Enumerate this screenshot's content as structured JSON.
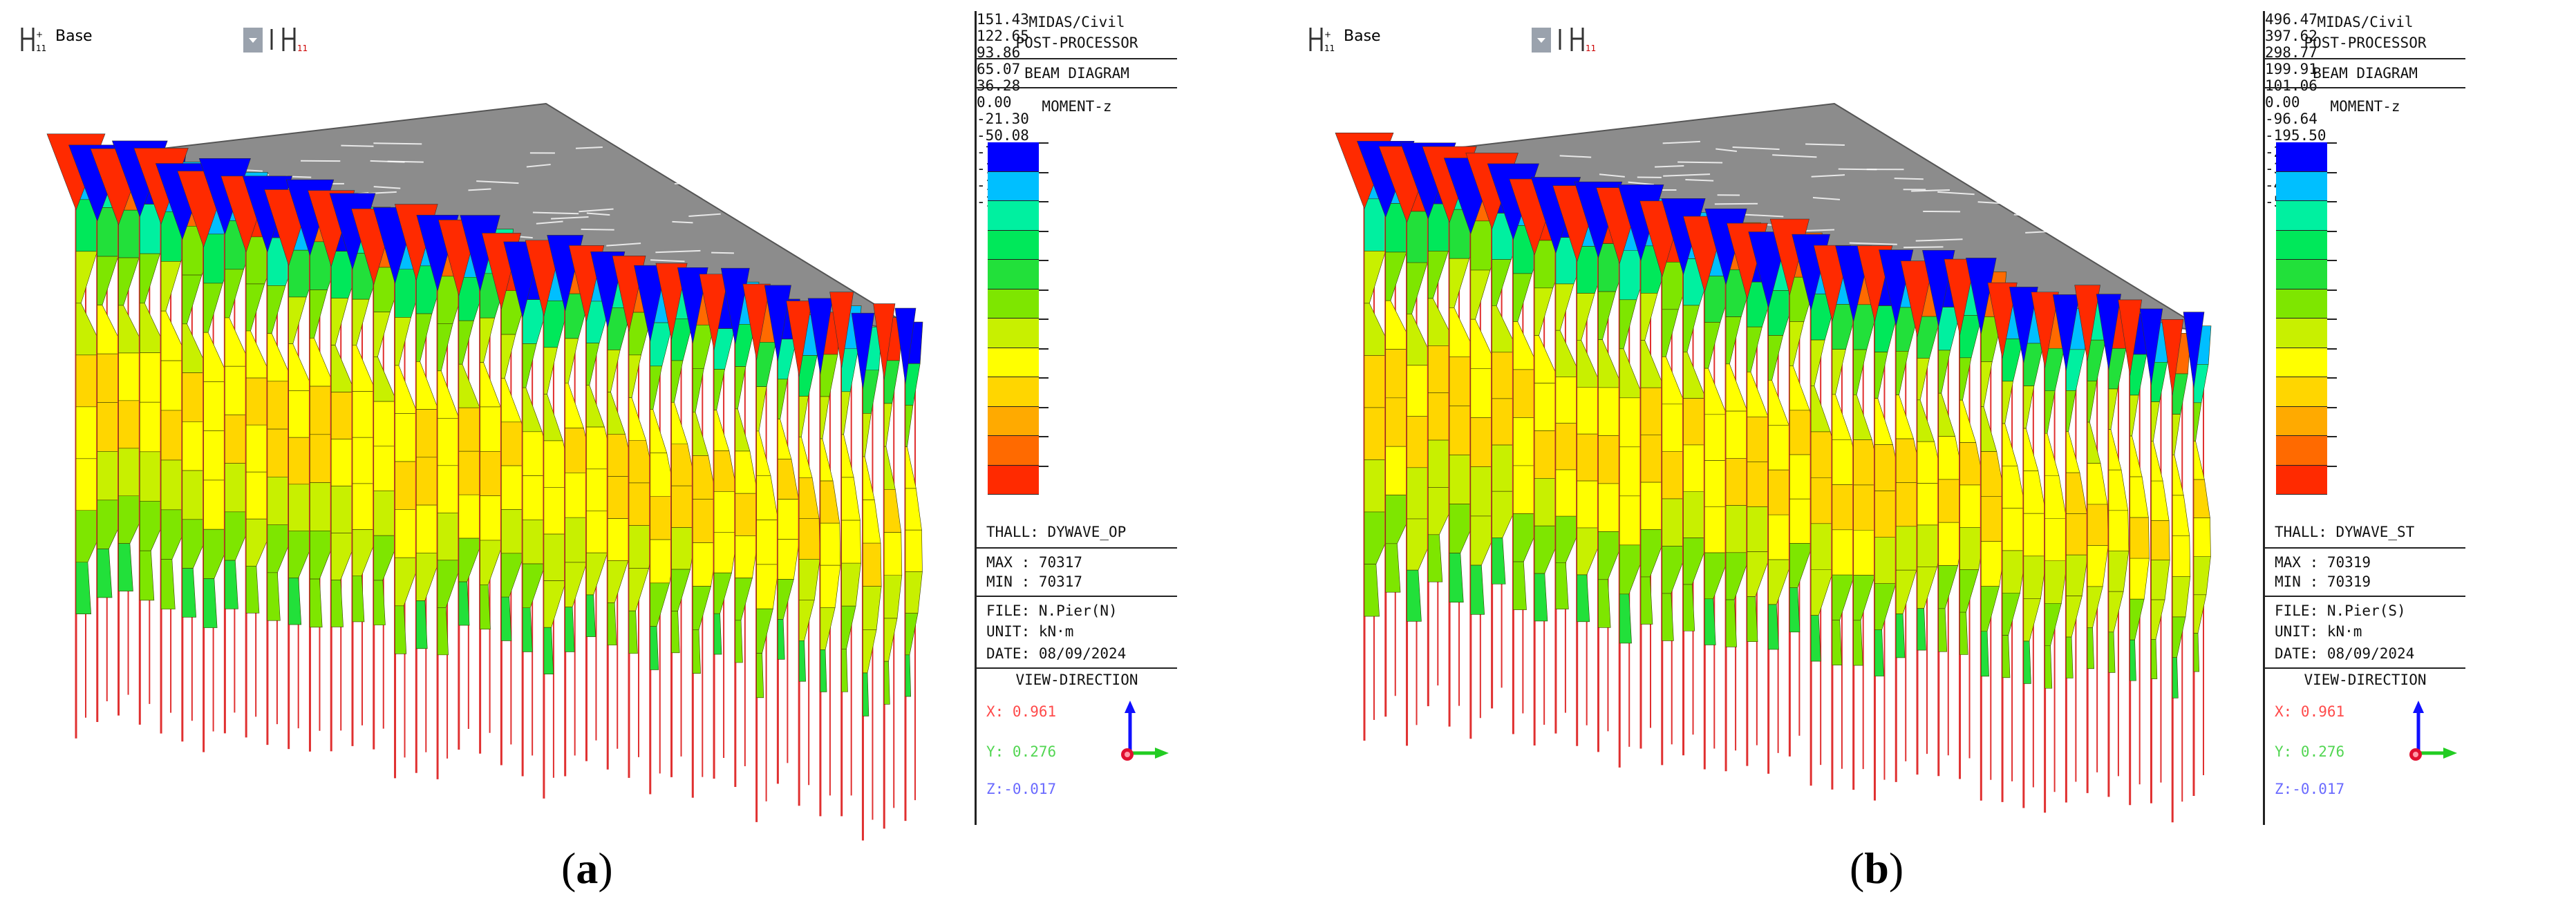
{
  "panels": [
    {
      "id": "a",
      "toolbar": {
        "base_label": "Base"
      },
      "legend": {
        "program": "MIDAS/Civil",
        "module": "POST-PROCESSOR",
        "diagram": "BEAM DIAGRAM",
        "component": "MOMENT-z",
        "scale_values": [
          "151.43",
          "122.65",
          "93.86",
          "65.07",
          "36.28",
          "0.00",
          "-21.30",
          "-50.08",
          "-78.87",
          "-107.66",
          "-136.45",
          "-165.24"
        ],
        "load_case": "THALL: DYWAVE_OP",
        "max": "MAX : 70317",
        "min": "MIN : 70317",
        "file": "FILE: N.Pier(N)",
        "unit": "UNIT: kN·m",
        "date": "DATE: 08/09/2024",
        "view_direction": "VIEW-DIRECTION",
        "vd_x": "X: 0.961",
        "vd_y": "Y: 0.276",
        "vd_z": "Z:-0.017"
      },
      "caption_letter": "a"
    },
    {
      "id": "b",
      "toolbar": {
        "base_label": "Base"
      },
      "legend": {
        "program": "MIDAS/Civil",
        "module": "POST-PROCESSOR",
        "diagram": "BEAM DIAGRAM",
        "component": "MOMENT-z",
        "scale_values": [
          "496.47",
          "397.62",
          "298.77",
          "199.91",
          "101.06",
          "0.00",
          "-96.64",
          "-195.50",
          "-294.35",
          "-393.20",
          "-492.05",
          "-590.90"
        ],
        "load_case": "THALL: DYWAVE_ST",
        "max": "MAX : 70319",
        "min": "MIN : 70319",
        "file": "FILE: N.Pier(S)",
        "unit": "UNIT: kN·m",
        "date": "DATE: 08/09/2024",
        "view_direction": "VIEW-DIRECTION",
        "vd_x": "X: 0.961",
        "vd_y": "Y: 0.276",
        "vd_z": "Z:-0.017"
      },
      "caption_letter": "b"
    }
  ],
  "colors": {
    "scale": [
      "#0000ff",
      "#00bfff",
      "#00f0a0",
      "#00e85a",
      "#22e03a",
      "#7ee600",
      "#c8f000",
      "#ffff00",
      "#ffd600",
      "#ffaa00",
      "#ff6a00",
      "#ff2a00"
    ],
    "deck": "#8c8c8c",
    "pile": "#e03030"
  },
  "icons": {
    "toolbar_left": "grid-axis-icon",
    "toolbar_dropdown": "dropdown-icon",
    "toolbar_right": "grid-axis-icon",
    "axis_triad": "axis-triad-icon"
  }
}
